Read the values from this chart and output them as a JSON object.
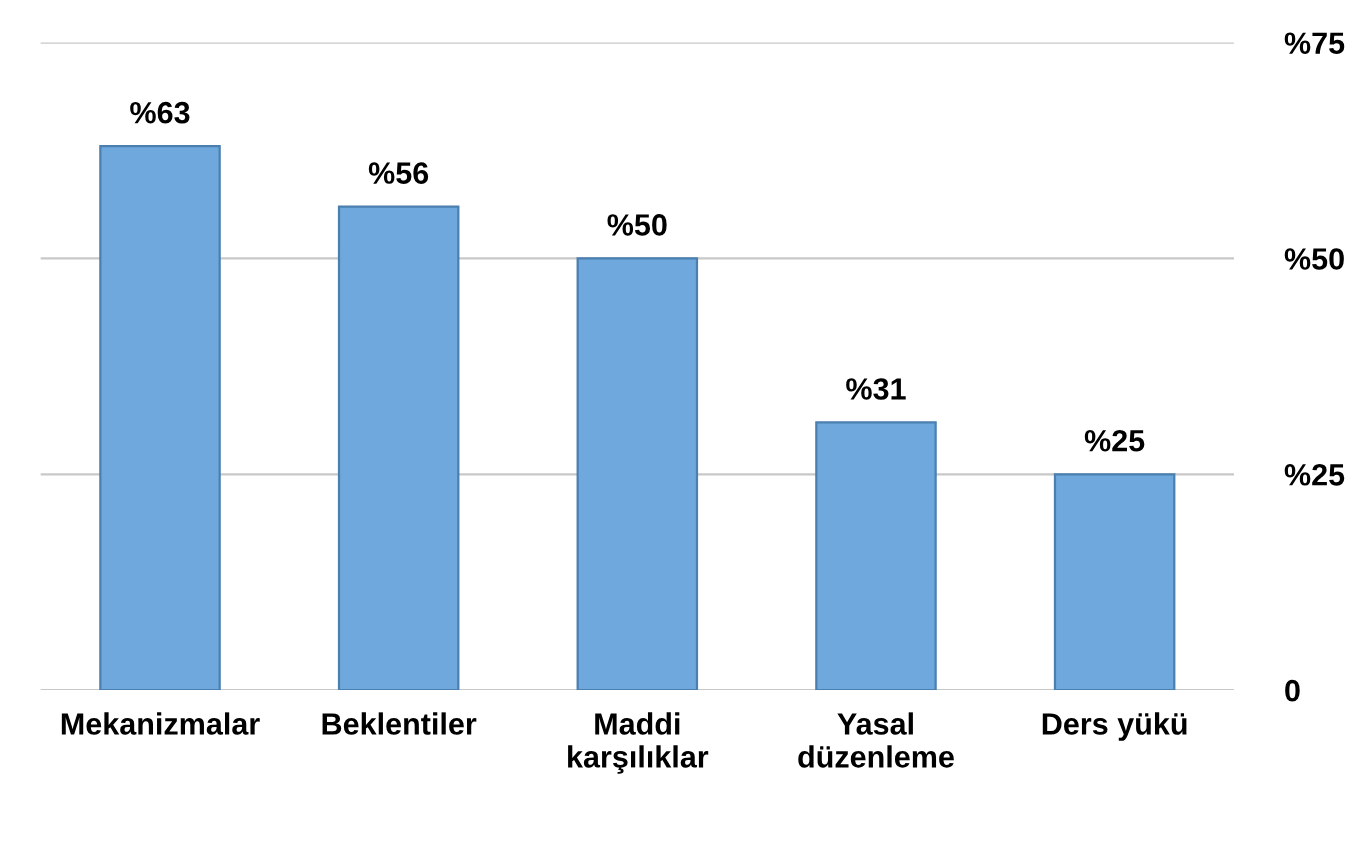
{
  "chart_data": {
    "type": "bar",
    "categories": [
      "Mekanizmalar",
      "Beklentiler",
      "Maddi\nkarşılıklar",
      "Yasal\ndüzenleme",
      "Ders yükü"
    ],
    "values": [
      63,
      56,
      50,
      31,
      25
    ],
    "value_labels": [
      "%63",
      "%56",
      "%50",
      "%31",
      "%25"
    ],
    "color": "#6fa8dc",
    "ylim": [
      0,
      75
    ],
    "yticks": [
      {
        "value": 0,
        "label": "0"
      },
      {
        "value": 25,
        "label": "%25"
      },
      {
        "value": 50,
        "label": "%50"
      },
      {
        "value": 75,
        "label": "%75"
      }
    ],
    "grid": "y",
    "legend": false
  }
}
